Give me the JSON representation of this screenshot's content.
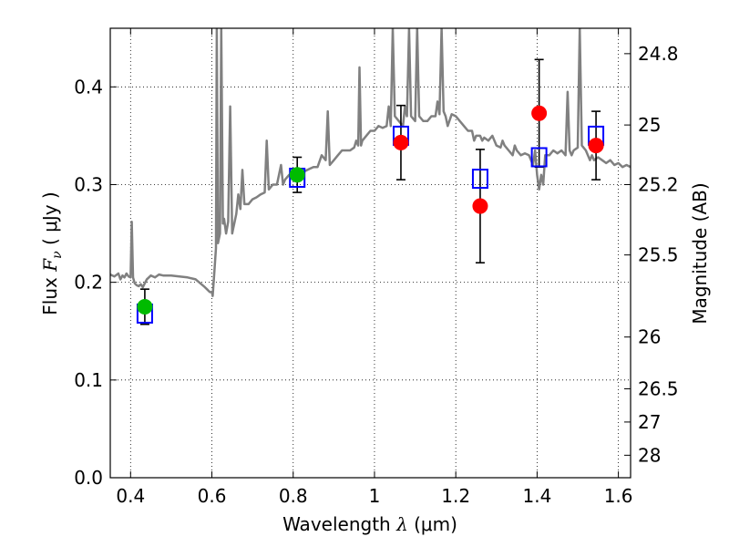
{
  "chart_data": {
    "type": "scatter",
    "xlabel_prefix": "Wavelength",
    "xlabel_symbol": "λ",
    "xlabel_unit": "(μm)",
    "ylabel_prefix": "Flux",
    "ylabel_symbol": "F",
    "ylabel_symbol_sub": "ν",
    "ylabel_unit": "( μJy )",
    "y2label": "Magnitude (AB)",
    "xlim": [
      0.35,
      1.63
    ],
    "ylim": [
      0.0,
      0.46
    ],
    "xticks": [
      0.4,
      0.6,
      0.8,
      1.0,
      1.2,
      1.4,
      1.6
    ],
    "xtick_labels": [
      "0.4",
      "0.6",
      "0.8",
      "1",
      "1.2",
      "1.4",
      "1.6"
    ],
    "yticks": [
      0.0,
      0.1,
      0.2,
      0.3,
      0.4
    ],
    "ytick_labels": [
      "0.0",
      "0.1",
      "0.2",
      "0.3",
      "0.4"
    ],
    "y2ticks": [
      {
        "label": "24.8",
        "flux": 0.434
      },
      {
        "label": "25",
        "flux": 0.361
      },
      {
        "label": "25.2",
        "flux": 0.3
      },
      {
        "label": "25.5",
        "flux": 0.228
      },
      {
        "label": "26",
        "flux": 0.144
      },
      {
        "label": "26.5",
        "flux": 0.091
      },
      {
        "label": "27",
        "flux": 0.057
      },
      {
        "label": "28",
        "flux": 0.023
      }
    ],
    "grid": true,
    "series": [
      {
        "kind": "spectrum-line",
        "color": "#808080",
        "points": [
          [
            0.35,
            0.208
          ],
          [
            0.36,
            0.206
          ],
          [
            0.37,
            0.209
          ],
          [
            0.375,
            0.203
          ],
          [
            0.38,
            0.207
          ],
          [
            0.385,
            0.205
          ],
          [
            0.39,
            0.209
          ],
          [
            0.395,
            0.206
          ],
          [
            0.4,
            0.205
          ],
          [
            0.403,
            0.262
          ],
          [
            0.406,
            0.205
          ],
          [
            0.41,
            0.199
          ],
          [
            0.415,
            0.197
          ],
          [
            0.42,
            0.196
          ],
          [
            0.425,
            0.198
          ],
          [
            0.43,
            0.195
          ],
          [
            0.44,
            0.203
          ],
          [
            0.45,
            0.207
          ],
          [
            0.46,
            0.205
          ],
          [
            0.47,
            0.208
          ],
          [
            0.48,
            0.207
          ],
          [
            0.5,
            0.207
          ],
          [
            0.52,
            0.206
          ],
          [
            0.54,
            0.205
          ],
          [
            0.56,
            0.203
          ],
          [
            0.58,
            0.196
          ],
          [
            0.59,
            0.192
          ],
          [
            0.595,
            0.19
          ],
          [
            0.6,
            0.19
          ],
          [
            0.602,
            0.186
          ],
          [
            0.606,
            0.21
          ],
          [
            0.61,
            0.235
          ],
          [
            0.612,
            0.46
          ],
          [
            0.615,
            0.24
          ],
          [
            0.62,
            0.25
          ],
          [
            0.623,
            0.46
          ],
          [
            0.627,
            0.26
          ],
          [
            0.63,
            0.265
          ],
          [
            0.635,
            0.25
          ],
          [
            0.64,
            0.262
          ],
          [
            0.645,
            0.38
          ],
          [
            0.65,
            0.25
          ],
          [
            0.66,
            0.27
          ],
          [
            0.665,
            0.29
          ],
          [
            0.67,
            0.275
          ],
          [
            0.675,
            0.315
          ],
          [
            0.68,
            0.28
          ],
          [
            0.69,
            0.28
          ],
          [
            0.7,
            0.285
          ],
          [
            0.71,
            0.287
          ],
          [
            0.72,
            0.29
          ],
          [
            0.73,
            0.292
          ],
          [
            0.735,
            0.345
          ],
          [
            0.74,
            0.295
          ],
          [
            0.75,
            0.3
          ],
          [
            0.76,
            0.3
          ],
          [
            0.77,
            0.32
          ],
          [
            0.775,
            0.3
          ],
          [
            0.78,
            0.305
          ],
          [
            0.79,
            0.31
          ],
          [
            0.8,
            0.31
          ],
          [
            0.81,
            0.31
          ],
          [
            0.82,
            0.313
          ],
          [
            0.83,
            0.314
          ],
          [
            0.84,
            0.316
          ],
          [
            0.85,
            0.318
          ],
          [
            0.86,
            0.318
          ],
          [
            0.87,
            0.33
          ],
          [
            0.88,
            0.325
          ],
          [
            0.885,
            0.375
          ],
          [
            0.89,
            0.32
          ],
          [
            0.9,
            0.325
          ],
          [
            0.91,
            0.33
          ],
          [
            0.92,
            0.335
          ],
          [
            0.93,
            0.335
          ],
          [
            0.94,
            0.335
          ],
          [
            0.95,
            0.338
          ],
          [
            0.955,
            0.345
          ],
          [
            0.96,
            0.34
          ],
          [
            0.963,
            0.42
          ],
          [
            0.967,
            0.34
          ],
          [
            0.97,
            0.345
          ],
          [
            0.98,
            0.35
          ],
          [
            0.99,
            0.355
          ],
          [
            1.0,
            0.355
          ],
          [
            1.01,
            0.36
          ],
          [
            1.02,
            0.358
          ],
          [
            1.03,
            0.36
          ],
          [
            1.035,
            0.38
          ],
          [
            1.04,
            0.36
          ],
          [
            1.045,
            0.46
          ],
          [
            1.05,
            0.37
          ],
          [
            1.06,
            0.365
          ],
          [
            1.07,
            0.36
          ],
          [
            1.075,
            0.38
          ],
          [
            1.08,
            0.37
          ],
          [
            1.085,
            0.46
          ],
          [
            1.09,
            0.37
          ],
          [
            1.1,
            0.365
          ],
          [
            1.105,
            0.46
          ],
          [
            1.11,
            0.37
          ],
          [
            1.12,
            0.365
          ],
          [
            1.13,
            0.365
          ],
          [
            1.14,
            0.37
          ],
          [
            1.15,
            0.37
          ],
          [
            1.155,
            0.385
          ],
          [
            1.16,
            0.372
          ],
          [
            1.165,
            0.46
          ],
          [
            1.17,
            0.375
          ],
          [
            1.175,
            0.37
          ],
          [
            1.18,
            0.36
          ],
          [
            1.19,
            0.372
          ],
          [
            1.2,
            0.37
          ],
          [
            1.21,
            0.365
          ],
          [
            1.22,
            0.36
          ],
          [
            1.23,
            0.355
          ],
          [
            1.24,
            0.355
          ],
          [
            1.245,
            0.345
          ],
          [
            1.25,
            0.35
          ],
          [
            1.26,
            0.35
          ],
          [
            1.265,
            0.345
          ],
          [
            1.27,
            0.348
          ],
          [
            1.28,
            0.345
          ],
          [
            1.29,
            0.35
          ],
          [
            1.3,
            0.34
          ],
          [
            1.31,
            0.338
          ],
          [
            1.315,
            0.345
          ],
          [
            1.32,
            0.34
          ],
          [
            1.33,
            0.335
          ],
          [
            1.34,
            0.33
          ],
          [
            1.345,
            0.34
          ],
          [
            1.35,
            0.335
          ],
          [
            1.36,
            0.33
          ],
          [
            1.37,
            0.332
          ],
          [
            1.38,
            0.33
          ],
          [
            1.39,
            0.32
          ],
          [
            1.395,
            0.335
          ],
          [
            1.4,
            0.31
          ],
          [
            1.405,
            0.295
          ],
          [
            1.41,
            0.31
          ],
          [
            1.415,
            0.3
          ],
          [
            1.42,
            0.33
          ],
          [
            1.43,
            0.33
          ],
          [
            1.44,
            0.335
          ],
          [
            1.45,
            0.332
          ],
          [
            1.46,
            0.335
          ],
          [
            1.47,
            0.33
          ],
          [
            1.475,
            0.395
          ],
          [
            1.48,
            0.335
          ],
          [
            1.485,
            0.33
          ],
          [
            1.49,
            0.335
          ],
          [
            1.5,
            0.338
          ],
          [
            1.505,
            0.46
          ],
          [
            1.51,
            0.34
          ],
          [
            1.52,
            0.335
          ],
          [
            1.53,
            0.325
          ],
          [
            1.535,
            0.33
          ],
          [
            1.54,
            0.325
          ],
          [
            1.55,
            0.328
          ],
          [
            1.56,
            0.325
          ],
          [
            1.57,
            0.322
          ],
          [
            1.58,
            0.325
          ],
          [
            1.59,
            0.32
          ],
          [
            1.6,
            0.322
          ],
          [
            1.61,
            0.318
          ],
          [
            1.62,
            0.32
          ],
          [
            1.63,
            0.318
          ]
        ]
      },
      {
        "kind": "model-squares",
        "color": "#0000ff",
        "points": [
          [
            0.435,
            0.168
          ],
          [
            0.81,
            0.307
          ],
          [
            1.065,
            0.35
          ],
          [
            1.26,
            0.306
          ],
          [
            1.405,
            0.328
          ],
          [
            1.545,
            0.35
          ]
        ]
      },
      {
        "kind": "observed-green",
        "color": "#00bb00",
        "points": [
          [
            0.435,
            0.175,
            0.018
          ],
          [
            0.81,
            0.31,
            0.018
          ]
        ]
      },
      {
        "kind": "observed-red",
        "color": "#ff0000",
        "points": [
          [
            1.065,
            0.343,
            0.038
          ],
          [
            1.26,
            0.278,
            0.058
          ],
          [
            1.405,
            0.373,
            0.055
          ],
          [
            1.545,
            0.34,
            0.035
          ]
        ]
      }
    ]
  }
}
